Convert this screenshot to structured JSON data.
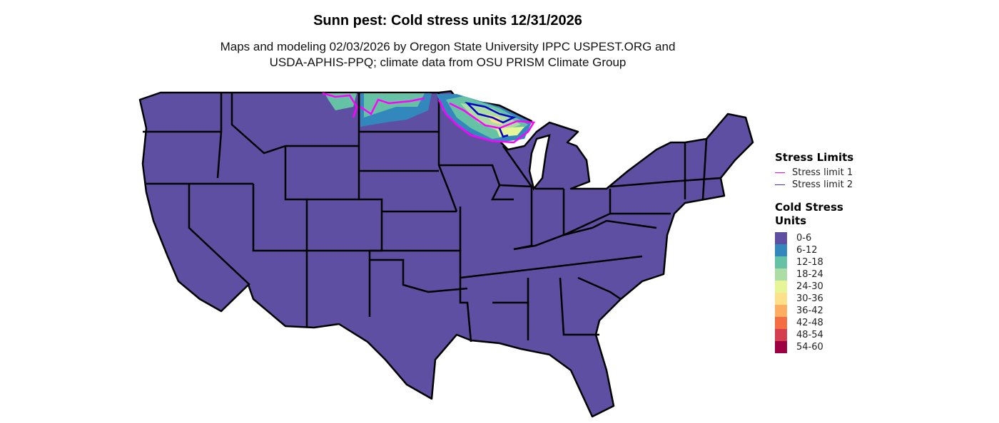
{
  "header": {
    "title": "Sunn pest: Cold stress units 12/31/2026",
    "subtitle_line1": "Maps and modeling 02/03/2026 by Oregon State University IPPC USPEST.ORG and",
    "subtitle_line2": "USDA-APHIS-PPQ; climate data from OSU PRISM Climate Group"
  },
  "legend": {
    "stress_limits": {
      "title": "Stress Limits",
      "items": [
        {
          "label": "Stress limit 1",
          "color": "#ff00ff"
        },
        {
          "label": "Stress limit 2",
          "color": "#0000cc"
        }
      ]
    },
    "cold_stress_units": {
      "title": "Cold Stress Units",
      "items": [
        {
          "label": "0-6",
          "color": "#5e4fa2"
        },
        {
          "label": "6-12",
          "color": "#3288bd"
        },
        {
          "label": "12-18",
          "color": "#66c2a5"
        },
        {
          "label": "18-24",
          "color": "#abdda4"
        },
        {
          "label": "24-30",
          "color": "#e6f598"
        },
        {
          "label": "30-36",
          "color": "#fee08b"
        },
        {
          "label": "36-42",
          "color": "#fdae61"
        },
        {
          "label": "42-48",
          "color": "#f46d43"
        },
        {
          "label": "48-54",
          "color": "#d53e4f"
        },
        {
          "label": "54-60",
          "color": "#9e0142"
        }
      ]
    }
  },
  "map": {
    "base_color": "#5e4fa2",
    "border_color": "#000000"
  }
}
